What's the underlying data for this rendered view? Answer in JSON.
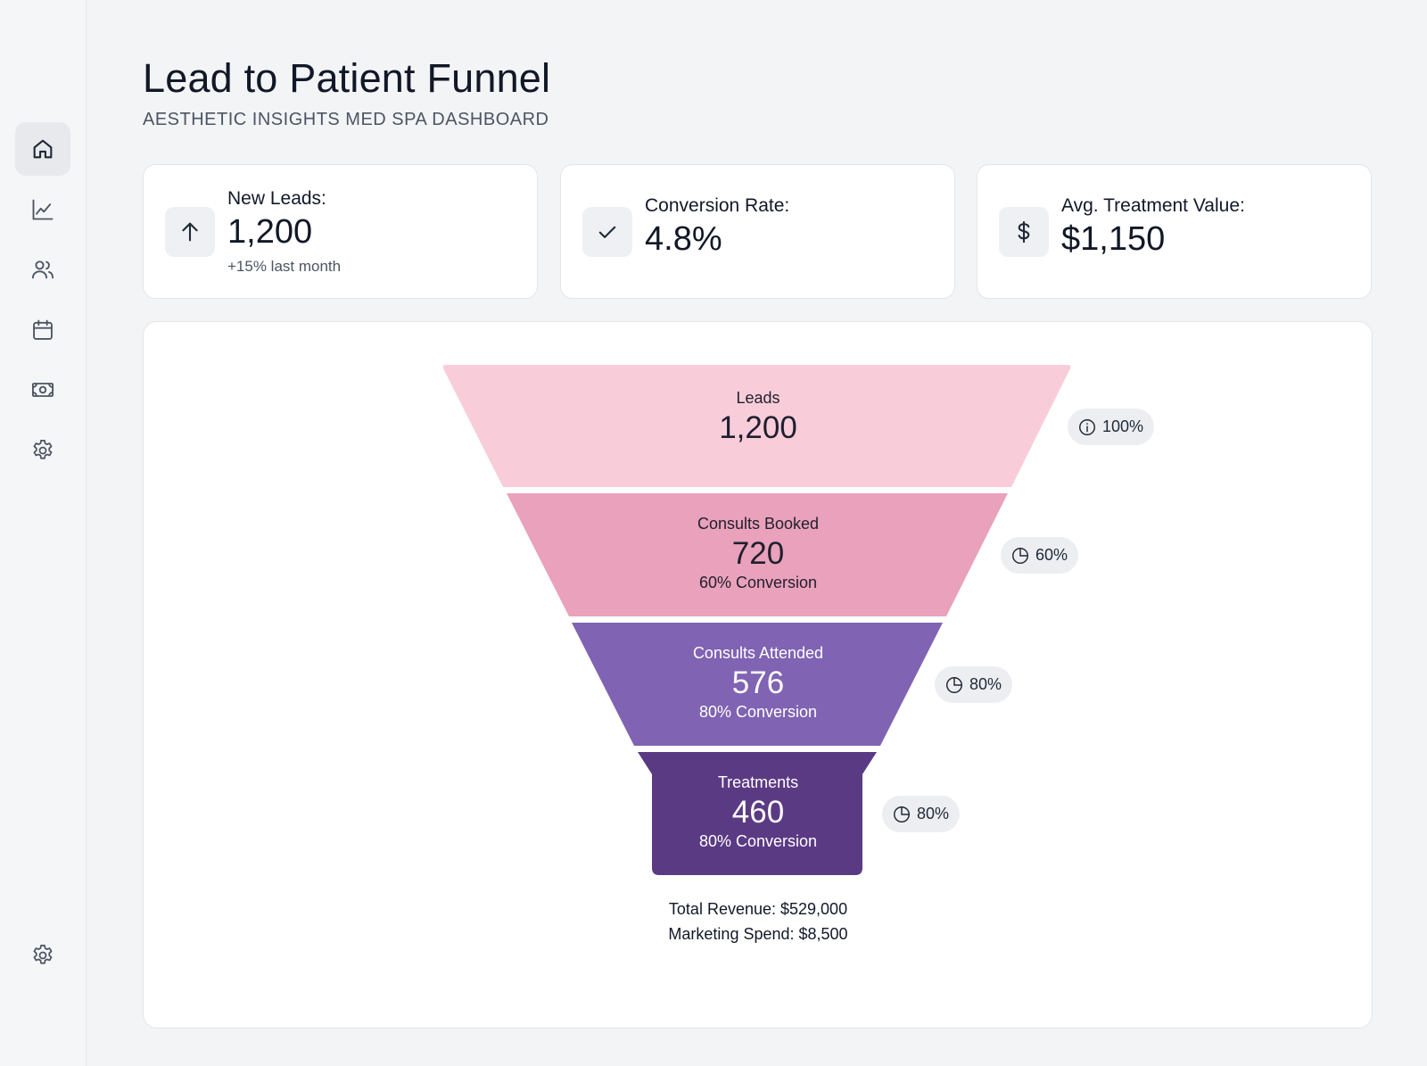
{
  "header": {
    "title": "Lead to Patient Funnel",
    "subtitle": "AESTHETIC INSIGHTS MED SPA DASHBOARD"
  },
  "sidebar": {
    "items": [
      {
        "icon": "home-icon",
        "active": true
      },
      {
        "icon": "chart-line-icon",
        "active": false
      },
      {
        "icon": "users-icon",
        "active": false
      },
      {
        "icon": "calendar-icon",
        "active": false
      },
      {
        "icon": "banknote-icon",
        "active": false
      },
      {
        "icon": "gear-icon",
        "active": false
      }
    ],
    "bottom_icon": "gear-icon"
  },
  "kpis": [
    {
      "label": "New Leads:",
      "value": "1,200",
      "note": "+15% last month",
      "icon": "arrow-up-icon"
    },
    {
      "label": "Conversion Rate:",
      "value": "4.8%",
      "icon": "check-icon"
    },
    {
      "label": "Avg. Treatment Value:",
      "value": "$1,150",
      "icon": "dollar-icon"
    }
  ],
  "chart_data": {
    "type": "funnel",
    "stages": [
      {
        "name": "Leads",
        "value": "1,200",
        "conversion": "",
        "pill": "100%",
        "pill_icon": "info-icon",
        "color": "#f8cdd9",
        "text_color": "#1f1f2e"
      },
      {
        "name": "Consults Booked",
        "value": "720",
        "conversion": "60% Conversion",
        "pill": "60%",
        "pill_icon": "pie-chart-icon",
        "color": "#eaa1bb",
        "text_color": "#1f1f2e"
      },
      {
        "name": "Consults Attended",
        "value": "576",
        "conversion": "80% Conversion",
        "pill": "80%",
        "pill_icon": "pie-chart-icon",
        "color": "#8063b2",
        "text_color": "#ffffff"
      },
      {
        "name": "Treatments",
        "value": "460",
        "conversion": "80% Conversion",
        "pill": "80%",
        "pill_icon": "pie-chart-icon",
        "color": "#5b3a84",
        "text_color": "#ffffff"
      }
    ]
  },
  "summary": {
    "revenue": "Total Revenue: $529,000",
    "spend": "Marketing Spend: $8,500"
  }
}
